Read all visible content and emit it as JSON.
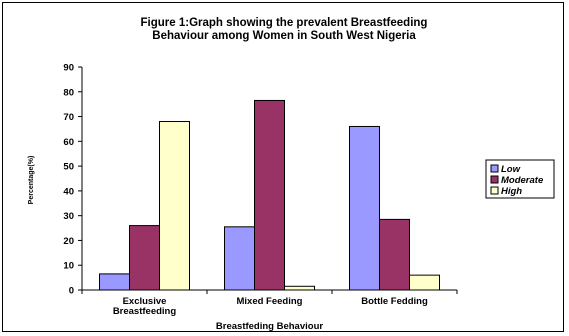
{
  "chart_data": {
    "type": "bar",
    "title": "Figure 1:Graph showing the prevalent Breastfeeding\nBehaviour among Women in South West Nigeria",
    "xlabel": "Breastfeding Behaviour",
    "ylabel": "Percentage(%)",
    "ylim": [
      0,
      90
    ],
    "yticks": [
      "0",
      "10",
      "20",
      "30",
      "40",
      "50",
      "60",
      "70",
      "80",
      "90"
    ],
    "categories": [
      "Exclusive\nBreastfeeding",
      "Mixed Feeding",
      "Bottle Fedding"
    ],
    "series": [
      {
        "name": "Low",
        "values": [
          6.5,
          25.5,
          66
        ],
        "color": "#9999ff"
      },
      {
        "name": "Moderate",
        "values": [
          26,
          76.5,
          28.5
        ],
        "color": "#993366"
      },
      {
        "name": "High",
        "values": [
          68,
          1.5,
          6
        ],
        "color": "#ffffcc"
      }
    ],
    "grid": false,
    "legend": "right"
  }
}
